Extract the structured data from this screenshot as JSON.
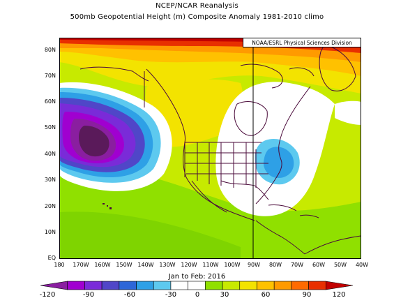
{
  "title": {
    "line1": "NCEP/NCAR Reanalysis",
    "line2": "500mb Geopotential Height (m) Composite Anomaly 1981-2010 climo"
  },
  "credit": "NOAA/ESRL Physical Sciences Division",
  "date_range": "Jan to Feb: 2016",
  "axes": {
    "lat_labels": [
      "80N",
      "70N",
      "60N",
      "50N",
      "40N",
      "30N",
      "20N",
      "10N",
      "EQ"
    ],
    "lon_labels": [
      "180",
      "170W",
      "160W",
      "150W",
      "140W",
      "130W",
      "120W",
      "110W",
      "100W",
      "90W",
      "80W",
      "70W",
      "60W",
      "50W",
      "40W"
    ]
  },
  "colorbar": {
    "labels": [
      "-120",
      "-90",
      "-60",
      "-30",
      "0",
      "30",
      "60",
      "90",
      "120"
    ],
    "colors": [
      "#8a1ea0",
      "#a000d0",
      "#7a2bd8",
      "#5046c8",
      "#2d66d8",
      "#2ea0e6",
      "#5dc9ef",
      "#ffffff",
      "#ffffff",
      "#90e000",
      "#c8ea00",
      "#f3e300",
      "#ffc100",
      "#ff9a00",
      "#ff6a00",
      "#e82f00",
      "#c20000"
    ]
  },
  "map": {
    "extent": {
      "lon_min": -180,
      "lon_max": -40,
      "lat_min": 0,
      "lat_max": 85
    },
    "features": [
      {
        "name": "negative-anomaly-low",
        "center_lon": -156,
        "center_lat": 45,
        "value_min": -120
      },
      {
        "name": "negative-anomaly-east",
        "center_lon": -82,
        "center_lat": 37,
        "value_min": -30
      },
      {
        "name": "positive-anomaly-arctic",
        "center_lat": 80,
        "value_max": 120
      }
    ]
  }
}
